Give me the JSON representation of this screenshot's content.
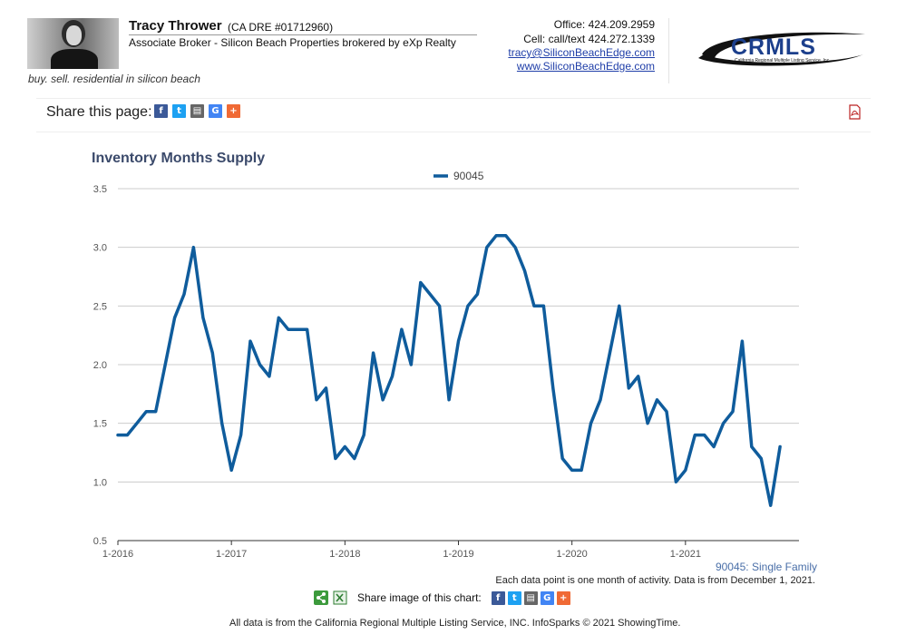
{
  "agent": {
    "name": "Tracy Thrower",
    "license": "(CA DRE #01712960)",
    "role": "Associate Broker - Silicon Beach Properties brokered by eXp Realty",
    "tagline": "buy. sell. residential in silicon beach",
    "office": "Office: 424.209.2959",
    "cell": "Cell: call/text 424.272.1339",
    "email": "tracy@SiliconBeachEdge.com",
    "website": "www.SiliconBeachEdge.com"
  },
  "logo": {
    "text": "CRMLS",
    "subtext": "California Regional Multiple Listing Service, Inc.",
    "color": "#1c3f8c"
  },
  "share": {
    "label": "Share this page:",
    "chart_label": "Share image of this chart:",
    "icons": [
      {
        "name": "facebook-icon",
        "glyph": "f",
        "color": "#3b5998"
      },
      {
        "name": "twitter-icon",
        "glyph": "t",
        "color": "#1da1f2"
      },
      {
        "name": "printer-icon",
        "glyph": "▤",
        "color": "#666666"
      },
      {
        "name": "google-icon",
        "glyph": "G",
        "color": "#4285f4"
      },
      {
        "name": "more-plus-icon",
        "glyph": "+",
        "color": "#f06a35"
      }
    ]
  },
  "colors": {
    "series": "#0f5c9c",
    "title": "#3b4a6b",
    "grid": "#cccccc"
  },
  "chart_data": {
    "type": "line",
    "title": "Inventory Months Supply",
    "legend": [
      "90045"
    ],
    "legend_position": "top-center",
    "xlabel": "",
    "ylabel": "",
    "ylim": [
      0.5,
      3.5
    ],
    "yticks": [
      "0.5",
      "1.0",
      "1.5",
      "2.0",
      "2.5",
      "3.0",
      "3.5"
    ],
    "xticks": [
      "1-2016",
      "1-2017",
      "1-2018",
      "1-2019",
      "1-2020",
      "1-2021"
    ],
    "grid": true,
    "start": "1-2016",
    "end": "12-2021",
    "series": [
      {
        "name": "90045",
        "values": [
          1.4,
          1.4,
          1.5,
          1.6,
          1.6,
          2.0,
          2.4,
          2.6,
          3.0,
          2.4,
          2.1,
          1.5,
          1.1,
          1.4,
          2.2,
          2.0,
          1.9,
          2.4,
          2.3,
          2.3,
          2.3,
          1.7,
          1.8,
          1.2,
          1.3,
          1.2,
          1.4,
          2.1,
          1.7,
          1.9,
          2.3,
          2.0,
          2.7,
          2.6,
          2.5,
          1.7,
          2.2,
          2.5,
          2.6,
          3.0,
          3.1,
          3.1,
          3.0,
          2.8,
          2.5,
          2.5,
          1.8,
          1.2,
          1.1,
          1.1,
          1.5,
          1.7,
          2.1,
          2.5,
          1.8,
          1.9,
          1.5,
          1.7,
          1.6,
          1.0,
          1.1,
          1.4,
          1.4,
          1.3,
          1.5,
          1.6,
          2.2,
          1.3,
          1.2,
          0.8,
          1.3
        ]
      }
    ]
  },
  "footer": {
    "series_note": "90045: Single Family",
    "data_note": "Each data point is one month of activity. Data is from December 1, 2021.",
    "source": "All data is from the California Regional Multiple Listing Service, INC. InfoSparks © 2021 ShowingTime."
  }
}
